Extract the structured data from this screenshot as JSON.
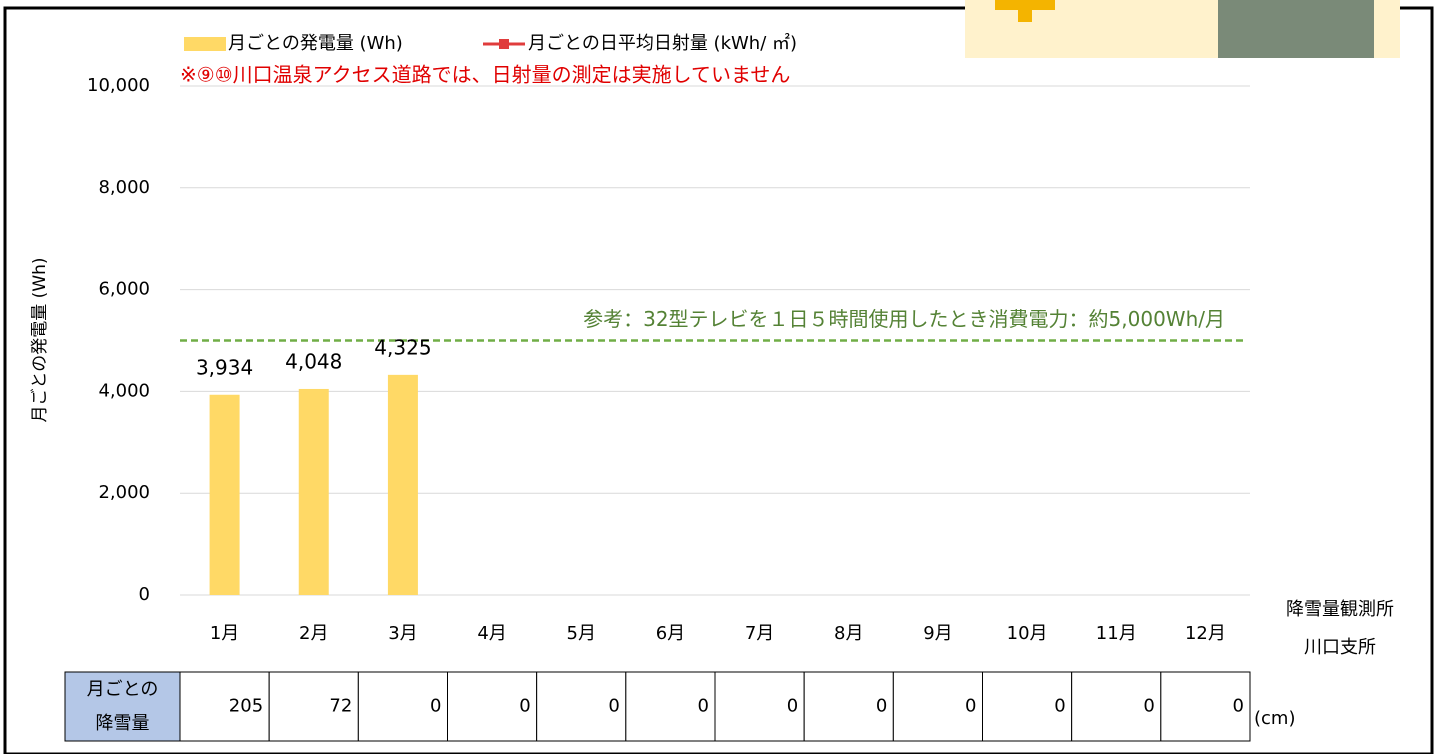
{
  "chart_data": {
    "type": "bar",
    "categories": [
      "1月",
      "2月",
      "3月",
      "4月",
      "5月",
      "6月",
      "7月",
      "8月",
      "9月",
      "10月",
      "11月",
      "12月"
    ],
    "series": [
      {
        "name": "月ごとの発電量 (Wh)",
        "color": "#ffd966",
        "values": [
          3934,
          4048,
          4325,
          null,
          null,
          null,
          null,
          null,
          null,
          null,
          null,
          null
        ],
        "value_labels": [
          "3,934",
          "4,048",
          "4,325",
          null,
          null,
          null,
          null,
          null,
          null,
          null,
          null,
          null
        ]
      },
      {
        "name": "月ごとの日平均日射量 (kWh/ ㎡)",
        "color": "#e03c3c",
        "values": [
          null,
          null,
          null,
          null,
          null,
          null,
          null,
          null,
          null,
          null,
          null,
          null
        ]
      }
    ],
    "note": "※⑨⑩川口温泉アクセス道路では、日射量の測定は実施していません",
    "y_label": "月ごとの発電量 (Wh)",
    "ylim": [
      0,
      10000
    ],
    "yticks": [
      0,
      {
        "value": 2000,
        "label": "2,000"
      },
      {
        "value": 4000,
        "label": "4,000"
      },
      {
        "value": 6000,
        "label": "6,000"
      },
      {
        "value": 8000,
        "label": "8,000"
      },
      {
        "value": 10000,
        "label": "10,000"
      }
    ],
    "grid": true,
    "reference_line": {
      "value": 5000,
      "color": "#70ad47",
      "label": "参考：32型テレビを１日５時間使用したとき消費電力：約5,000Wh/月"
    },
    "snowfall": {
      "header": [
        "月ごとの",
        "降雪量"
      ],
      "station": [
        "降雪量観測所",
        "川口支所"
      ],
      "values": [
        205,
        72,
        0,
        0,
        0,
        0,
        0,
        0,
        0,
        0,
        0,
        0
      ],
      "unit": "(cm)"
    }
  }
}
